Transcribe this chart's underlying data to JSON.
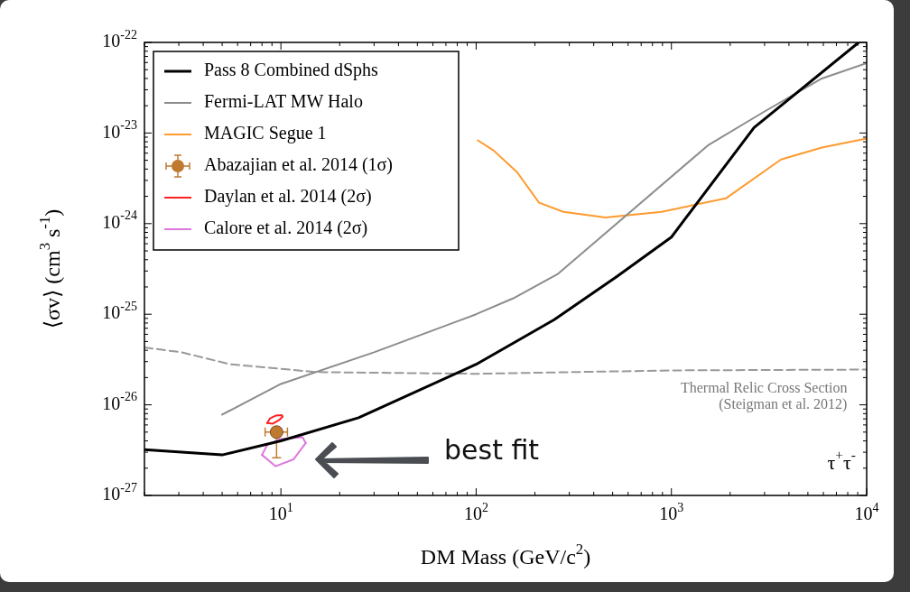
{
  "chart_data": {
    "type": "line",
    "xlabel": "DM Mass (GeV/c$^{2}$)",
    "ylabel": "⟨σv⟩ (cm$^{3}$ s$^{-1}$)",
    "log": "xy",
    "legend": "top left",
    "xlim": [
      2,
      10000
    ],
    "ylim": [
      1e-27,
      1e-22
    ],
    "xticks": [
      {
        "value": 10,
        "label": "10$^{1}$"
      },
      {
        "value": 100,
        "label": "10$^{2}$"
      },
      {
        "value": 1000,
        "label": "10$^{3}$"
      },
      {
        "value": 10000,
        "label": "10$^{4}$"
      }
    ],
    "yticks": [
      {
        "value": 1e-27,
        "label": "10$^{-27}$"
      },
      {
        "value": 1e-26,
        "label": "10$^{-26}$"
      },
      {
        "value": 1e-25,
        "label": "10$^{-25}$"
      },
      {
        "value": 1e-24,
        "label": "10$^{-24}$"
      },
      {
        "value": 1e-23,
        "label": "10$^{-23}$"
      },
      {
        "value": 1e-22,
        "label": "10$^{-22}$"
      }
    ],
    "series": [
      {
        "name": "Pass 8 Combined dSphs",
        "color": "#000000",
        "x": [
          2,
          5,
          10,
          25,
          100,
          251,
          525,
          1000,
          2650,
          9100
        ],
        "values": [
          3.2e-27,
          2.8e-27,
          4e-27,
          7.2e-27,
          2.8e-26,
          8.7e-26,
          2.6e-25,
          7.1e-25,
          1.15e-23,
          1e-22
        ]
      },
      {
        "name": "Fermi-LAT MW Halo",
        "color": "#8c8c8c",
        "x": [
          5,
          10,
          30,
          100,
          155,
          263,
          1550,
          2960,
          5900,
          10000
        ],
        "values": [
          7.8e-27,
          1.7e-26,
          3.8e-26,
          1e-25,
          1.5e-25,
          2.8e-25,
          7.4e-24,
          1.7e-23,
          4e-23,
          5.9e-23
        ]
      },
      {
        "name": "MAGIC Segue 1",
        "color": "#ff9a2e",
        "x": [
          102,
          123,
          162,
          210,
          280,
          460,
          890,
          1900,
          3640,
          5900,
          10000
        ],
        "values": [
          8.3e-24,
          6.4e-24,
          3.7e-24,
          1.7e-24,
          1.35e-24,
          1.17e-24,
          1.35e-24,
          1.9e-24,
          5.1e-24,
          6.9e-24,
          8.7e-24
        ]
      },
      {
        "name": "Abazajian et al. 2014 (1σ)",
        "type": "scatter",
        "color": "#c07a30",
        "marker": "circle",
        "x": [
          9.5
        ],
        "values": [
          5e-27
        ],
        "errors": [
          [
            2.6e-27,
            5.6e-27
          ]
        ],
        "xerrors": [
          [
            8.3,
            10.8
          ]
        ]
      },
      {
        "name": "Daylan et al. 2014 (2σ)",
        "color": "#ff2020",
        "x": [
          8.5,
          8.8,
          9.4,
          10.1,
          10.2
        ],
        "values": [
          6.3e-27,
          7.1e-27,
          7.6e-27,
          7.7e-27,
          7.4e-27
        ]
      },
      {
        "color": "#ff2020",
        "x": [
          8.5,
          9.1,
          9.8,
          10.2
        ],
        "values": [
          6.3e-27,
          6.2e-27,
          6.8e-27,
          7.4e-27
        ]
      },
      {
        "name": "Calore et al. 2014 (2σ)",
        "color": "#dd77dd",
        "x": [
          8.0,
          8.5,
          10,
          12.9,
          13.4
        ],
        "values": [
          2.8e-27,
          3.6e-27,
          4.2e-27,
          4.4e-27,
          3.8e-27
        ]
      },
      {
        "color": "#dd77dd",
        "x": [
          8.0,
          9.4,
          11.6,
          13.4
        ],
        "values": [
          2.8e-27,
          2.1e-27,
          2.5e-27,
          3.8e-27
        ]
      },
      {
        "color": "#999999",
        "line_style": "dashed",
        "x": [
          2,
          3.1,
          5.5,
          10,
          15,
          100,
          1000,
          10000
        ],
        "values": [
          4.3e-26,
          3.8e-26,
          2.8e-26,
          2.5e-26,
          2.3e-26,
          2.2e-26,
          2.4e-26,
          2.45e-26
        ]
      }
    ],
    "annotations": [
      "Thermal Relic Cross Section",
      "(Steigman et al. 2012)",
      "τ$^{+}$τ$^{-}$",
      "best fit"
    ]
  }
}
